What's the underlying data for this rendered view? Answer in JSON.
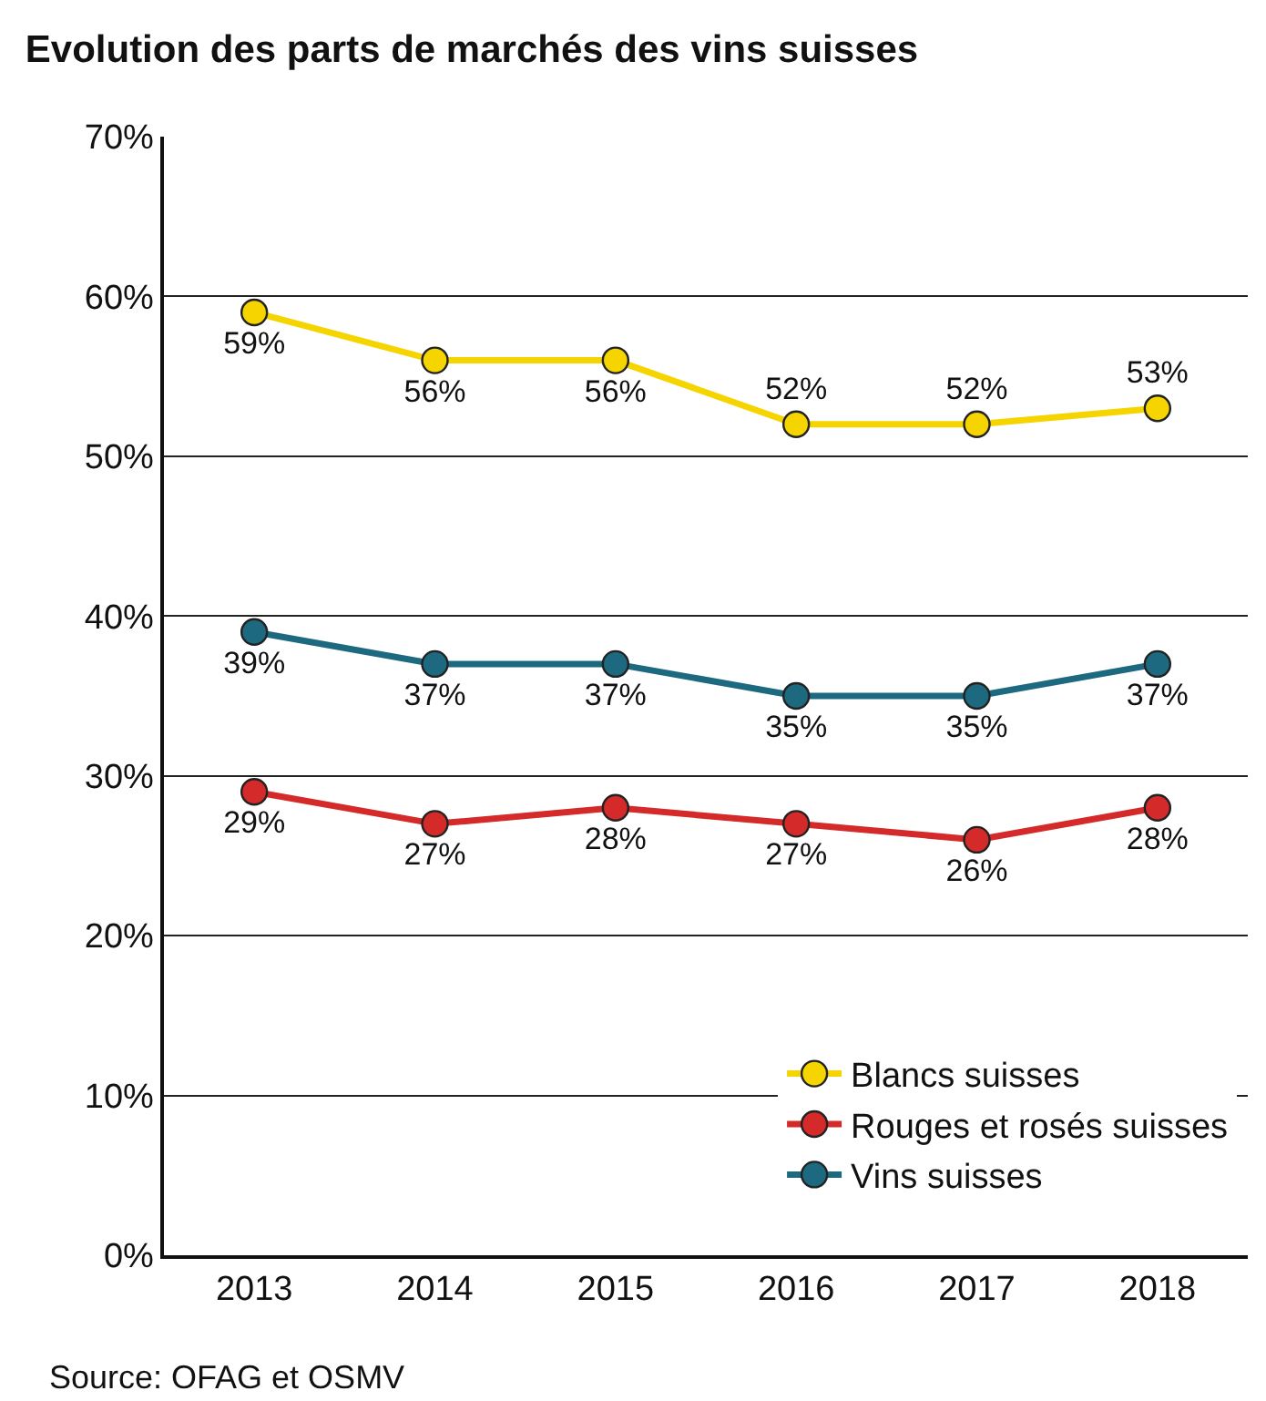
{
  "chart_data": {
    "type": "line",
    "title": "Evolution des parts de marchés des vins suisses",
    "categories": [
      "2013",
      "2014",
      "2015",
      "2016",
      "2017",
      "2018"
    ],
    "series": [
      {
        "name": "Blancs suisses",
        "color": "#f5d400",
        "values": [
          59,
          56,
          56,
          52,
          52,
          53
        ],
        "value_labels": [
          "59%",
          "56%",
          "56%",
          "52%",
          "52%",
          "53%"
        ]
      },
      {
        "name": "Rouges et rosés suisses",
        "color": "#d42a2a",
        "values": [
          29,
          27,
          28,
          27,
          26,
          28
        ],
        "value_labels": [
          "29%",
          "27%",
          "28%",
          "27%",
          "26%",
          "28%"
        ]
      },
      {
        "name": "Vins suisses",
        "color": "#1d6a80",
        "values": [
          39,
          37,
          37,
          35,
          35,
          37
        ],
        "value_labels": [
          "39%",
          "37%",
          "37%",
          "35%",
          "35%",
          "37%"
        ]
      }
    ],
    "ylim": [
      0,
      70
    ],
    "yticks": [
      {
        "value": 0,
        "label": "0%"
      },
      {
        "value": 10,
        "label": "10%"
      },
      {
        "value": 20,
        "label": "20%"
      },
      {
        "value": 30,
        "label": "30%"
      },
      {
        "value": 40,
        "label": "40%"
      },
      {
        "value": 50,
        "label": "50%"
      },
      {
        "value": 60,
        "label": "60%"
      },
      {
        "value": 70,
        "label": "70%"
      }
    ],
    "grid": "y",
    "legend": "bottom right",
    "marker": "circle",
    "line_style": "solid",
    "annotations": [
      "Source: OFAG et OSMV"
    ]
  }
}
